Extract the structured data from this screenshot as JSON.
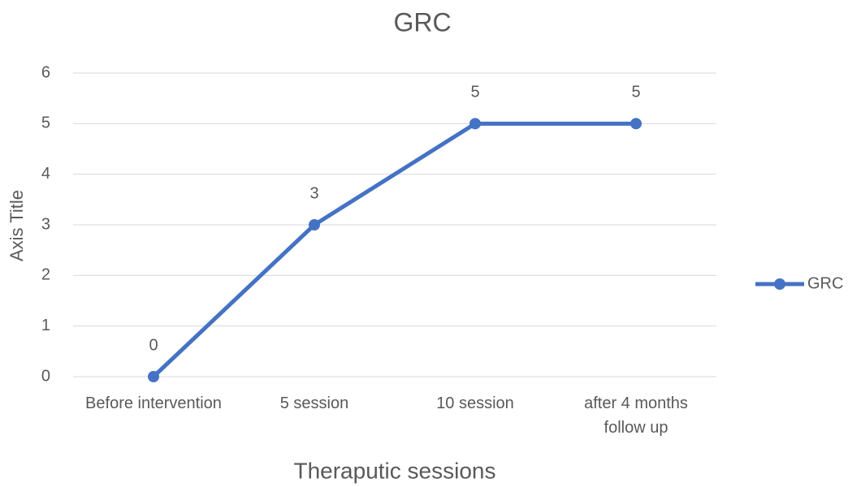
{
  "chart_data": {
    "type": "line",
    "title": "GRC",
    "x_label": "Theraputic sessions",
    "y_label": "Axis Title",
    "categories": [
      "Before intervention",
      "5 session",
      "10 session",
      "after 4 months follow up"
    ],
    "series": [
      {
        "name": "GRC",
        "color": "#4472c4",
        "values": [
          0,
          3,
          5,
          5
        ]
      }
    ],
    "ylim": [
      0,
      6
    ],
    "yticks": [
      0,
      1,
      2,
      3,
      4,
      5,
      6
    ],
    "grid": true,
    "legend": "right",
    "data_labels": true
  }
}
